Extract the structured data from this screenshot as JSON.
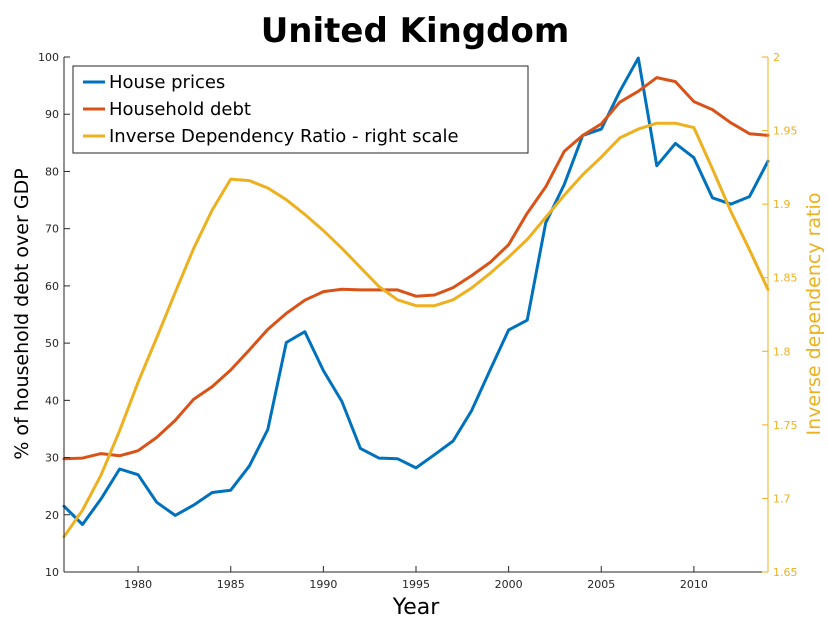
{
  "chart_data": {
    "type": "line",
    "title": "United Kingdom",
    "xlabel": "Year",
    "ylabel_left": "% of household debt over GDP",
    "ylabel_right": "Inverse dependency ratio",
    "xlim": [
      1976,
      2014
    ],
    "ylim_left": [
      10,
      100
    ],
    "ylim_right": [
      1.65,
      2.0
    ],
    "x_ticks": [
      1980,
      1985,
      1990,
      1995,
      2000,
      2005,
      2010
    ],
    "y_ticks_left": [
      10,
      20,
      30,
      40,
      50,
      60,
      70,
      80,
      90,
      100
    ],
    "y_ticks_right": [
      "1.65",
      "1.7",
      "1.75",
      "1.8",
      "1.85",
      "1.9",
      "1.95",
      "2"
    ],
    "legend_position": "top-left",
    "grid": false,
    "x": [
      1976,
      1977,
      1978,
      1979,
      1980,
      1981,
      1982,
      1983,
      1984,
      1985,
      1986,
      1987,
      1988,
      1989,
      1990,
      1991,
      1992,
      1993,
      1994,
      1995,
      1996,
      1997,
      1998,
      1999,
      2000,
      2001,
      2002,
      2003,
      2004,
      2005,
      2006,
      2007,
      2008,
      2009,
      2010,
      2011,
      2012,
      2013,
      2014
    ],
    "series": [
      {
        "name": "House prices",
        "axis": "left",
        "color": "#0072BD",
        "values": [
          21.5,
          18.3,
          22.8,
          28.0,
          27.0,
          22.2,
          19.9,
          21.7,
          23.9,
          24.3,
          28.5,
          34.9,
          50.1,
          52.0,
          45.2,
          39.8,
          31.6,
          29.9,
          29.8,
          28.2,
          30.5,
          32.9,
          38.2,
          45.3,
          52.3,
          54.0,
          71.0,
          77.7,
          86.3,
          87.4,
          94.0,
          99.8,
          81.0,
          84.9,
          82.4,
          75.4,
          74.3,
          75.6,
          81.8
        ]
      },
      {
        "name": "Household debt",
        "axis": "left",
        "color": "#D95319",
        "values": [
          29.8,
          29.9,
          30.7,
          30.3,
          31.2,
          33.5,
          36.5,
          40.2,
          42.4,
          45.3,
          48.8,
          52.4,
          55.2,
          57.5,
          59.0,
          59.4,
          59.3,
          59.3,
          59.3,
          58.2,
          58.4,
          59.7,
          61.8,
          64.1,
          67.2,
          72.7,
          77.3,
          83.5,
          86.3,
          88.3,
          92.1,
          94.0,
          96.4,
          95.7,
          92.2,
          90.8,
          88.5,
          86.6,
          86.3
        ]
      },
      {
        "name": "Inverse Dependency Ratio - right scale",
        "axis": "right",
        "color": "#EDB120",
        "values": [
          1.674,
          1.692,
          1.716,
          1.746,
          1.779,
          1.809,
          1.84,
          1.87,
          1.896,
          1.917,
          1.916,
          1.911,
          1.903,
          1.893,
          1.882,
          1.87,
          1.857,
          1.844,
          1.835,
          1.831,
          1.831,
          1.835,
          1.843,
          1.853,
          1.864,
          1.876,
          1.891,
          1.906,
          1.92,
          1.932,
          1.945,
          1.951,
          1.955,
          1.955,
          1.952,
          1.924,
          1.895,
          1.869,
          1.842
        ]
      }
    ]
  }
}
